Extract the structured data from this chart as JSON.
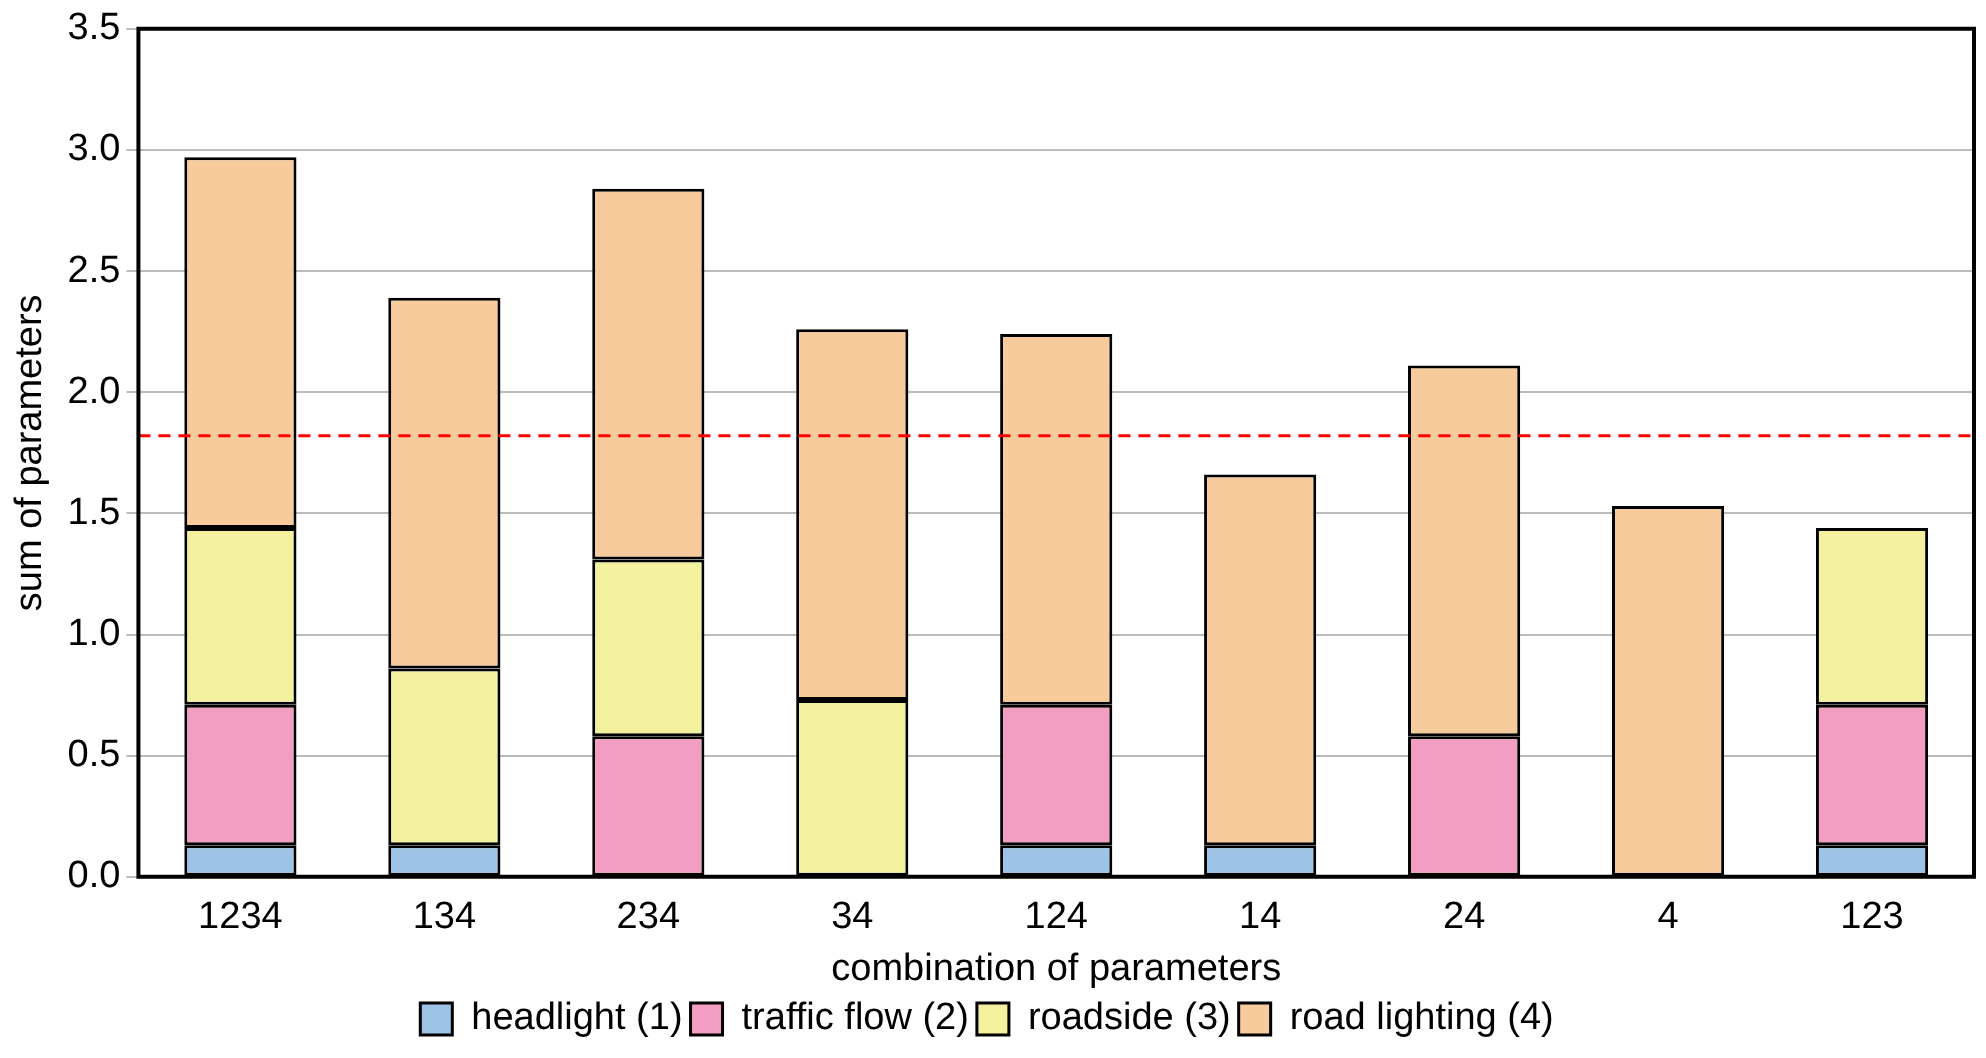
{
  "chart_data": {
    "type": "bar",
    "stacked": true,
    "xlabel": "combination of parameters",
    "ylabel": "sum of parameters",
    "categories": [
      "1234",
      "134",
      "234",
      "34",
      "124",
      "14",
      "24",
      "4",
      "123"
    ],
    "series": [
      {
        "name": "headlight (1)",
        "color": "#9dc3e6",
        "values": [
          0.13,
          0.13,
          0,
          0,
          0.13,
          0.13,
          0,
          0,
          0.13
        ]
      },
      {
        "name": "traffic flow (2)",
        "color": "#f19ec2",
        "values": [
          0.58,
          0,
          0.58,
          0,
          0.58,
          0,
          0.58,
          0,
          0.58
        ]
      },
      {
        "name": "roadside (3)",
        "color": "#f4f19e",
        "values": [
          0.73,
          0.73,
          0.73,
          0.73,
          0,
          0,
          0,
          0,
          0.73
        ]
      },
      {
        "name": "road lighting (4)",
        "color": "#f8cb9c",
        "values": [
          1.53,
          1.53,
          1.53,
          1.53,
          1.53,
          1.53,
          1.53,
          1.53,
          0
        ]
      }
    ],
    "ylim": [
      0,
      3.5
    ],
    "yticks": [
      {
        "value": 0,
        "label": "0.0"
      },
      {
        "value": 0.5,
        "label": "0.5"
      },
      {
        "value": 1,
        "label": "1.0"
      },
      {
        "value": 1.5,
        "label": "1.5"
      },
      {
        "value": 2,
        "label": "2.0"
      },
      {
        "value": 2.5,
        "label": "2.5"
      },
      {
        "value": 3,
        "label": "3.0"
      },
      {
        "value": 3.5,
        "label": "3.5"
      }
    ],
    "ref_lines": [
      {
        "axis": "y",
        "value": 1.82,
        "color": "#ff0000",
        "line_style": "dashed"
      }
    ],
    "grid": "y",
    "legend": "bottom"
  }
}
